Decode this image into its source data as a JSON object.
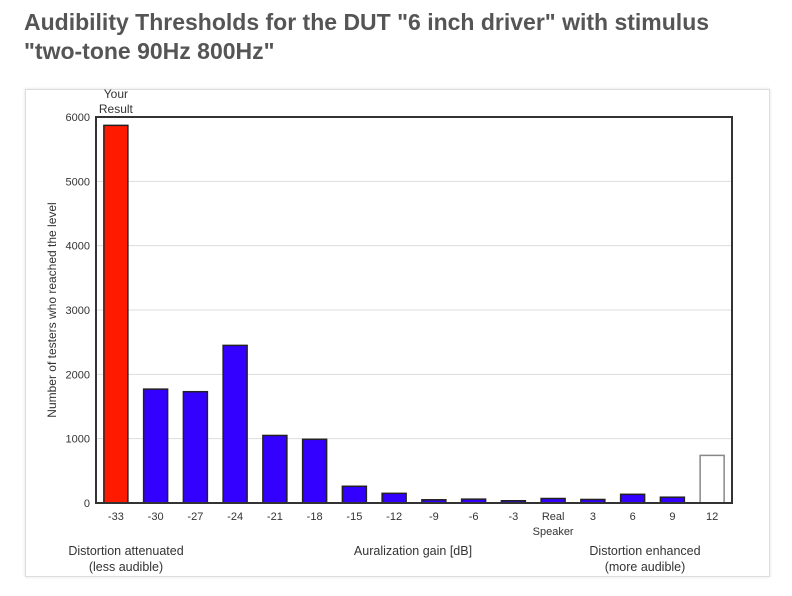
{
  "page": {
    "title_line1": "Audibility Thresholds for the DUT \"6 inch driver\" with stimulus",
    "title_line2": "\"two-tone 90Hz 800Hz\""
  },
  "chart_data": {
    "type": "bar",
    "categories": [
      "-33",
      "-30",
      "-27",
      "-24",
      "-21",
      "-18",
      "-15",
      "-12",
      "-9",
      "-6",
      "-3",
      "Real Speaker",
      "3",
      "6",
      "9",
      "12"
    ],
    "values": [
      5870,
      1770,
      1730,
      2450,
      1050,
      990,
      260,
      150,
      50,
      60,
      35,
      70,
      55,
      135,
      90,
      740
    ],
    "bar_colors": [
      "#ff1a00",
      "#3300ff",
      "#3300ff",
      "#3300ff",
      "#3300ff",
      "#3300ff",
      "#3300ff",
      "#3300ff",
      "#3300ff",
      "#3300ff",
      "#3300ff",
      "#3300ff",
      "#3300ff",
      "#3300ff",
      "#3300ff",
      "#ffffff"
    ],
    "bar_strokes": [
      "#222222",
      "#222222",
      "#222222",
      "#222222",
      "#222222",
      "#222222",
      "#222222",
      "#222222",
      "#222222",
      "#222222",
      "#222222",
      "#222222",
      "#222222",
      "#222222",
      "#222222",
      "#888888"
    ],
    "ylabel": "Number of testers who reached the level",
    "xlabel": "Auralization gain [dB]",
    "ylim": [
      0,
      6000
    ],
    "yticks": [
      0,
      1000,
      2000,
      3000,
      4000,
      5000,
      6000
    ],
    "grid": true,
    "annotation_top": [
      "Your",
      "Result"
    ],
    "annotation_left": [
      "Distortion attenuated",
      "(less audible)"
    ],
    "annotation_right": [
      "Distortion enhanced",
      "(more audible)"
    ]
  }
}
